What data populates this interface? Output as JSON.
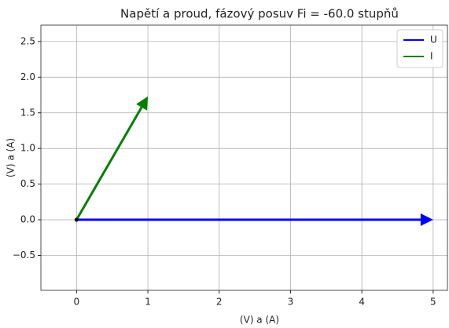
{
  "chart_data": {
    "type": "vector",
    "title": "Napětí a proud, fázový posuv Fi = -60.0 stupňů",
    "xlabel": "(V) a (A)",
    "ylabel": "(V) a (A)",
    "series": [
      {
        "name": "U",
        "color": "#0000ff",
        "x": [
          0,
          5
        ],
        "values": [
          0,
          0
        ]
      },
      {
        "name": "I",
        "color": "#008000",
        "x": [
          0,
          1
        ],
        "values": [
          0,
          1.73
        ]
      }
    ],
    "xlim": [
      -0.5,
      5.2
    ],
    "ylim": [
      -0.99,
      2.73
    ],
    "xticks": [
      0,
      1,
      2,
      3,
      4,
      5
    ],
    "yticks": [
      {
        "value": -0.5,
        "label": "−0.5"
      },
      {
        "value": 0,
        "label": "0.0"
      },
      0.5,
      {
        "value": 1,
        "label": "1.0"
      },
      1.5,
      {
        "value": 2,
        "label": "2.0"
      },
      2.5
    ],
    "grid": true,
    "legend": "upper right"
  }
}
